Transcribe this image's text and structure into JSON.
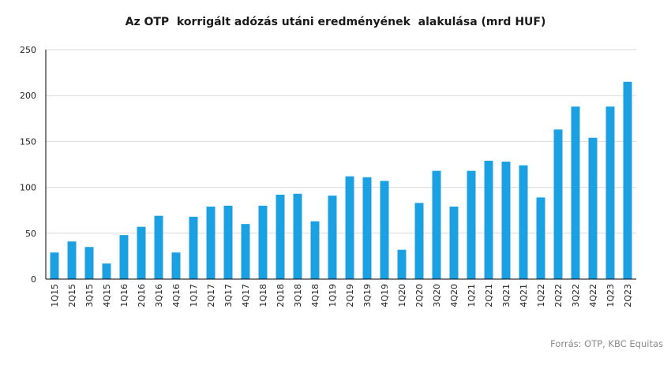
{
  "chart_data": {
    "type": "bar",
    "title": "Az OTP  korrigált adózás utáni eredményének  alakulása (mrd HUF)",
    "xlabel": "",
    "ylabel": "",
    "ylim": [
      0,
      250
    ],
    "yticks": [
      0,
      50,
      100,
      150,
      200,
      250
    ],
    "grid": true,
    "legend": "none",
    "bar_color": "#1ba1e2",
    "categories": [
      "1Q15",
      "2Q15",
      "3Q15",
      "4Q15",
      "1Q16",
      "2Q16",
      "3Q16",
      "4Q16",
      "1Q17",
      "2Q17",
      "3Q17",
      "4Q17",
      "1Q18",
      "2Q18",
      "3Q18",
      "4Q18",
      "1Q19",
      "2Q19",
      "3Q19",
      "4Q19",
      "1Q20",
      "2Q20",
      "3Q20",
      "4Q20",
      "1Q21",
      "2Q21",
      "3Q21",
      "4Q21",
      "1Q22",
      "2Q22",
      "3Q22",
      "4Q22",
      "1Q23",
      "2Q23"
    ],
    "values": [
      29,
      41,
      35,
      17,
      48,
      57,
      69,
      29,
      68,
      79,
      80,
      60,
      80,
      92,
      93,
      63,
      91,
      112,
      111,
      107,
      32,
      83,
      118,
      79,
      118,
      129,
      128,
      124,
      89,
      163,
      188,
      154,
      188,
      215
    ]
  },
  "source": "Forrás: OTP, KBC Equitas"
}
